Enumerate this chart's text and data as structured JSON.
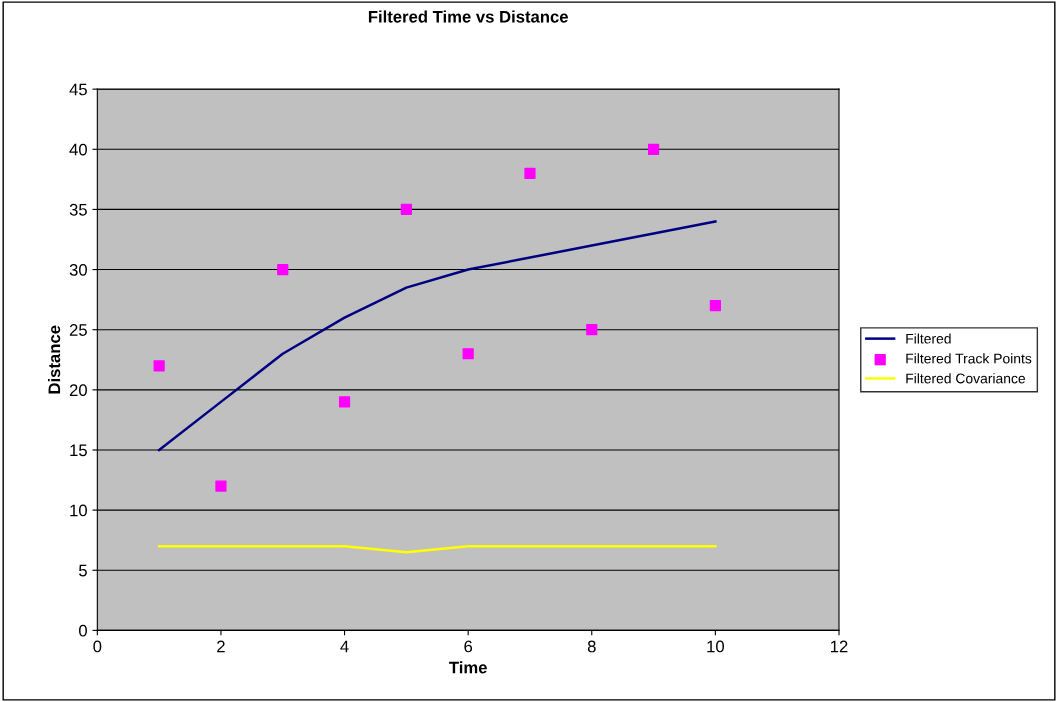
{
  "chart_data": {
    "type": "line",
    "title": "Filtered Time vs Distance",
    "xlabel": "Time",
    "ylabel": "Distance",
    "xlim": [
      0,
      12
    ],
    "xticks": [
      0,
      2,
      4,
      6,
      8,
      10,
      12
    ],
    "ylim": [
      0,
      45
    ],
    "yticks": [
      0,
      5,
      10,
      15,
      20,
      25,
      30,
      35,
      40,
      45
    ],
    "grid": "y",
    "legend": "right",
    "marker": "none",
    "line_style": "solid",
    "series": [
      {
        "name": "Filtered",
        "color": "#000080",
        "x": [
          1,
          2,
          3,
          4,
          5,
          6,
          7,
          8,
          9,
          10
        ],
        "values": [
          15,
          19,
          23,
          26,
          28.5,
          30,
          31,
          32,
          33,
          34
        ]
      },
      {
        "name": "Filtered Track Points",
        "type": "scatter",
        "marker": "square",
        "color": "#ff00ff",
        "x": [
          1,
          2,
          3,
          4,
          5,
          6,
          7,
          8,
          9,
          10
        ],
        "values": [
          22,
          12,
          30,
          19,
          35,
          23,
          38,
          25,
          40,
          27
        ]
      },
      {
        "name": "Filtered Covariance",
        "color": "#ffff00",
        "x": [
          1,
          2,
          3,
          4,
          5,
          6,
          7,
          8,
          9,
          10
        ],
        "values": [
          7,
          7,
          7,
          7,
          6.5,
          7,
          7,
          7,
          7,
          7
        ]
      }
    ]
  }
}
